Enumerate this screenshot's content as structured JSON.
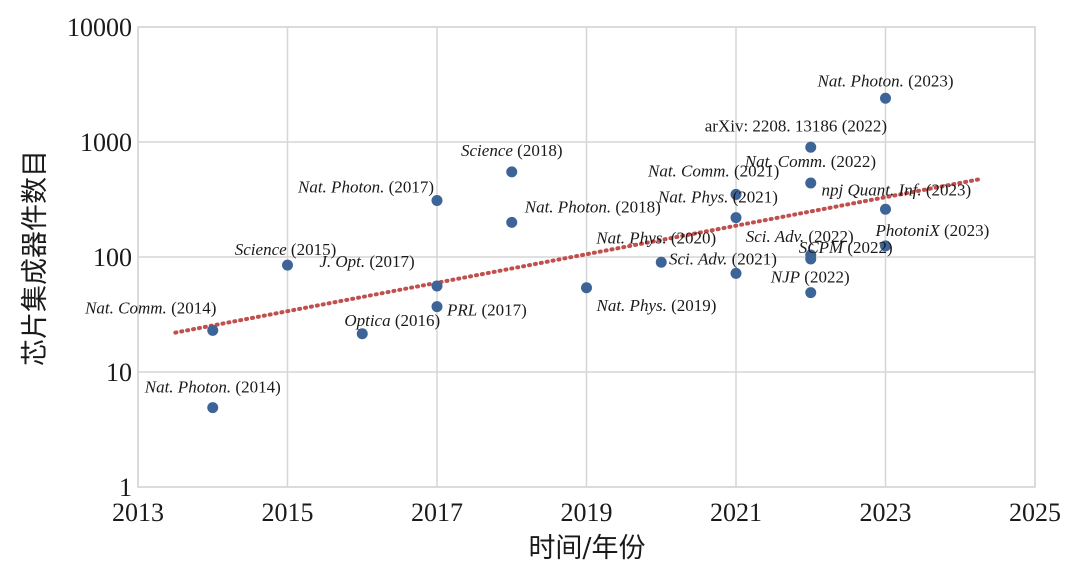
{
  "chart_data": {
    "type": "scatter",
    "title": "",
    "xlabel": "时间/年份",
    "ylabel": "芯片集成器件数目",
    "xlim": [
      2013,
      2025
    ],
    "ylim": [
      1,
      10000
    ],
    "y_scale": "log",
    "x_ticks": [
      "2013",
      "2015",
      "2017",
      "2019",
      "2021",
      "2023",
      "2025"
    ],
    "y_ticks": [
      "1",
      "10",
      "100",
      "1000",
      "10000"
    ],
    "grid": true,
    "marker_color": "#3d6497",
    "trendline": {
      "type": "exponential",
      "style": "dotted",
      "color": "#c0504d",
      "x": [
        2013.5,
        2024.3
      ],
      "y": [
        22,
        480
      ]
    },
    "points": [
      {
        "x": 2014,
        "y": 4.9,
        "journal": "Nat. Photon.",
        "year": "(2014)"
      },
      {
        "x": 2014,
        "y": 23,
        "journal": "Nat. Comm.",
        "year": "(2014)"
      },
      {
        "x": 2015,
        "y": 85,
        "journal": "Science",
        "year": "(2015)"
      },
      {
        "x": 2016,
        "y": 21.5,
        "journal": "Optica",
        "year": "(2016)"
      },
      {
        "x": 2017,
        "y": 37,
        "journal": "PRL",
        "year": "(2017)"
      },
      {
        "x": 2017,
        "y": 56,
        "journal": "J. Opt.",
        "year": "(2017)"
      },
      {
        "x": 2017,
        "y": 310,
        "journal": "Nat. Photon.",
        "year": "(2017)"
      },
      {
        "x": 2018,
        "y": 200,
        "journal": "Nat. Photon.",
        "year": "(2018)"
      },
      {
        "x": 2018,
        "y": 550,
        "journal": "Science",
        "year": "(2018)"
      },
      {
        "x": 2019,
        "y": 54,
        "journal": "Nat. Phys.",
        "year": "(2019)"
      },
      {
        "x": 2020,
        "y": 90,
        "journal": "Nat. Phys.",
        "year": "(2020)"
      },
      {
        "x": 2021,
        "y": 72,
        "journal": "Sci. Adv.",
        "year": "(2021)"
      },
      {
        "x": 2021,
        "y": 220,
        "journal": "Nat. Phys.",
        "year": "(2021)"
      },
      {
        "x": 2021,
        "y": 350,
        "journal": "Nat. Comm.",
        "year": "(2021)"
      },
      {
        "x": 2022,
        "y": 49,
        "journal": "NJP",
        "year": "(2022)"
      },
      {
        "x": 2022,
        "y": 96,
        "journal": "SCPM",
        "year": "(2022)"
      },
      {
        "x": 2022,
        "y": 104,
        "journal": "Sci. Adv.",
        "year": "(2022)"
      },
      {
        "x": 2022,
        "y": 440,
        "journal": "Nat. Comm.",
        "year": "(2022)"
      },
      {
        "x": 2022,
        "y": 900,
        "journal": "arXiv: 2208. 13186",
        "year": "(2022)",
        "upright": true
      },
      {
        "x": 2023,
        "y": 125,
        "journal": "PhotoniX",
        "year": "(2023)"
      },
      {
        "x": 2023,
        "y": 260,
        "journal": "npj Quant. Inf.",
        "year": "(2023)"
      },
      {
        "x": 2023,
        "y": 2400,
        "journal": "Nat. Photon.",
        "year": "(2023)"
      }
    ]
  }
}
